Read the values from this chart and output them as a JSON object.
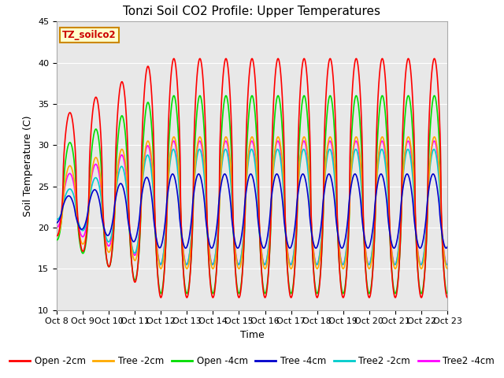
{
  "title": "Tonzi Soil CO2 Profile: Upper Temperatures",
  "xlabel": "Time",
  "ylabel": "Soil Temperature (C)",
  "ylim": [
    10,
    45
  ],
  "xlim": [
    0,
    15
  ],
  "xtick_labels": [
    "Oct 8",
    "Oct 9",
    "Oct 10",
    "Oct 11",
    "Oct 12",
    "Oct 13",
    "Oct 14",
    "Oct 15",
    "Oct 16",
    "Oct 17",
    "Oct 18",
    "Oct 19",
    "Oct 20",
    "Oct 21",
    "Oct 22",
    "Oct 23"
  ],
  "ytick_labels": [
    "10",
    "15",
    "20",
    "25",
    "30",
    "35",
    "40",
    "45"
  ],
  "ytick_values": [
    10,
    15,
    20,
    25,
    30,
    35,
    40,
    45
  ],
  "legend_box_label": "TZ_soilco2",
  "series": {
    "Open -2cm": {
      "color": "#ff0000",
      "lw": 1.2
    },
    "Tree -2cm": {
      "color": "#ffaa00",
      "lw": 1.2
    },
    "Open -4cm": {
      "color": "#00dd00",
      "lw": 1.2
    },
    "Tree -4cm": {
      "color": "#0000cc",
      "lw": 1.2
    },
    "Tree2 -2cm": {
      "color": "#00cccc",
      "lw": 1.2
    },
    "Tree2 -4cm": {
      "color": "#ff00ff",
      "lw": 1.2
    }
  },
  "plot_bg": "#e8e8e8",
  "fig_bg": "#ffffff",
  "title_fontsize": 11,
  "axis_label_fontsize": 9,
  "tick_fontsize": 8,
  "legend_fontsize": 8.5,
  "grid_color": "#ffffff",
  "grid_lw": 0.8
}
